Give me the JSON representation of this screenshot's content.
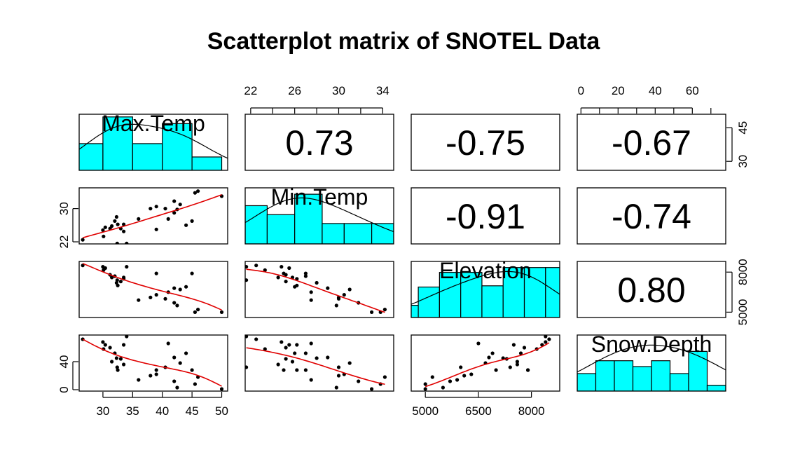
{
  "chart_data": {
    "type": "scatter",
    "title": "Scatterplot matrix of SNOTEL Data",
    "variables": [
      "Max.Temp",
      "Min.Temp",
      "Elevation",
      "Snow.Depth"
    ],
    "ranges": [
      [
        26,
        51
      ],
      [
        21.5,
        35
      ],
      [
        4600,
        8800
      ],
      [
        -2,
        78
      ]
    ],
    "axes": {
      "top": [
        {
          "col": 1,
          "ticks": [
            22,
            26,
            30,
            34
          ]
        },
        {
          "col": 3,
          "ticks": [
            0,
            20,
            40,
            60
          ]
        }
      ],
      "bottom": [
        {
          "col": 0,
          "ticks": [
            30,
            35,
            40,
            45,
            50
          ]
        },
        {
          "col": 2,
          "ticks": [
            5000,
            6500,
            8000
          ]
        }
      ],
      "left": [
        {
          "row": 1,
          "ticks": [
            22,
            30
          ]
        },
        {
          "row": 3,
          "ticks": [
            0,
            40
          ]
        }
      ],
      "right": [
        {
          "row": 0,
          "ticks": [
            30,
            45
          ]
        },
        {
          "row": 2,
          "ticks": [
            5000,
            8000
          ]
        }
      ]
    },
    "correlations": [
      {
        "row": 0,
        "col": 1,
        "value": "0.73"
      },
      {
        "row": 0,
        "col": 2,
        "value": "-0.75"
      },
      {
        "row": 0,
        "col": 3,
        "value": "-0.67"
      },
      {
        "row": 1,
        "col": 2,
        "value": "-0.91"
      },
      {
        "row": 1,
        "col": 3,
        "value": "-0.74"
      },
      {
        "row": 2,
        "col": 3,
        "value": "0.80"
      }
    ],
    "points": [
      {
        "max": 26.6,
        "min": 22.5,
        "elev": 8500,
        "snow": 72
      },
      {
        "max": 30.0,
        "min": 24.8,
        "elev": 8400,
        "snow": 68
      },
      {
        "max": 30.1,
        "min": 23.3,
        "elev": 8150,
        "snow": 58
      },
      {
        "max": 30.4,
        "min": 25.5,
        "elev": 8300,
        "snow": 64
      },
      {
        "max": 31.2,
        "min": 25.2,
        "elev": 7800,
        "snow": 60
      },
      {
        "max": 31.5,
        "min": 25.8,
        "elev": 7600,
        "snow": 40
      },
      {
        "max": 32.0,
        "min": 27.0,
        "elev": 7700,
        "snow": 52
      },
      {
        "max": 32.3,
        "min": 28.0,
        "elev": 7200,
        "snow": 45
      },
      {
        "max": 32.4,
        "min": 21.6,
        "elev": 7400,
        "snow": 32
      },
      {
        "max": 32.5,
        "min": 26.2,
        "elev": 7000,
        "snow": 28
      },
      {
        "max": 33.0,
        "min": 25.2,
        "elev": 7300,
        "snow": 44
      },
      {
        "max": 33.5,
        "min": 24.5,
        "elev": 7600,
        "snow": 36
      },
      {
        "max": 33.5,
        "min": 26.2,
        "elev": 7500,
        "snow": 64
      },
      {
        "max": 34.0,
        "min": 21.6,
        "elev": 8400,
        "snow": 76
      },
      {
        "max": 36.0,
        "min": 27.5,
        "elev": 5900,
        "snow": 14
      },
      {
        "max": 38.0,
        "min": 30.0,
        "elev": 6100,
        "snow": 20
      },
      {
        "max": 39.0,
        "min": 25.0,
        "elev": 7900,
        "snow": 28
      },
      {
        "max": 39.0,
        "min": 30.5,
        "elev": 6300,
        "snow": 22
      },
      {
        "max": 40.5,
        "min": 30.0,
        "elev": 6000,
        "snow": 32
      },
      {
        "max": 41.0,
        "min": 27.5,
        "elev": 6500,
        "snow": 66
      },
      {
        "max": 42.0,
        "min": 29.0,
        "elev": 6800,
        "snow": 46
      },
      {
        "max": 42.0,
        "min": 31.8,
        "elev": 5700,
        "snow": 12
      },
      {
        "max": 42.5,
        "min": 29.8,
        "elev": 5500,
        "snow": 3
      },
      {
        "max": 43.0,
        "min": 31.0,
        "elev": 6700,
        "snow": 38
      },
      {
        "max": 44.0,
        "min": 26.0,
        "elev": 6900,
        "snow": 52
      },
      {
        "max": 45.0,
        "min": 27.0,
        "elev": 7900,
        "snow": 28
      },
      {
        "max": 45.5,
        "min": 33.8,
        "elev": 5000,
        "snow": 8
      },
      {
        "max": 46.0,
        "min": 34.2,
        "elev": 5200,
        "snow": 18
      },
      {
        "max": 50.0,
        "min": 33.0,
        "elev": 5000,
        "snow": 1
      }
    ],
    "histograms": [
      {
        "var": 0,
        "bins": [
          [
            25,
            30,
            2
          ],
          [
            30,
            35,
            4
          ],
          [
            35,
            40,
            2
          ],
          [
            40,
            45,
            3.5
          ],
          [
            45,
            50,
            1
          ]
        ],
        "max": 4.2
      },
      {
        "var": 1,
        "bins": [
          [
            21.5,
            23.5,
            3
          ],
          [
            23.5,
            26,
            2.3
          ],
          [
            26,
            28.5,
            3.9
          ],
          [
            28.5,
            30.5,
            1.6
          ],
          [
            30.5,
            33,
            1.6
          ],
          [
            33,
            35,
            1.6
          ]
        ],
        "max": 4.4
      },
      {
        "var": 2,
        "bins": [
          [
            4500,
            4800,
            1
          ],
          [
            4800,
            5400,
            2.5
          ],
          [
            5400,
            6000,
            3.7
          ],
          [
            6000,
            6600,
            3.7
          ],
          [
            6600,
            7200,
            2.6
          ],
          [
            7200,
            7800,
            4.1
          ],
          [
            7800,
            8400,
            4.1
          ],
          [
            8400,
            9000,
            4.1
          ]
        ],
        "max": 4.6
      },
      {
        "var": 3,
        "bins": [
          [
            -2,
            8,
            1.5
          ],
          [
            8,
            18,
            2.6
          ],
          [
            18,
            28,
            2.6
          ],
          [
            28,
            38,
            2.1
          ],
          [
            38,
            48,
            2.6
          ],
          [
            48,
            58,
            1.5
          ],
          [
            58,
            68,
            3.4
          ],
          [
            68,
            78,
            0.5
          ]
        ],
        "max": 4.8
      }
    ]
  }
}
